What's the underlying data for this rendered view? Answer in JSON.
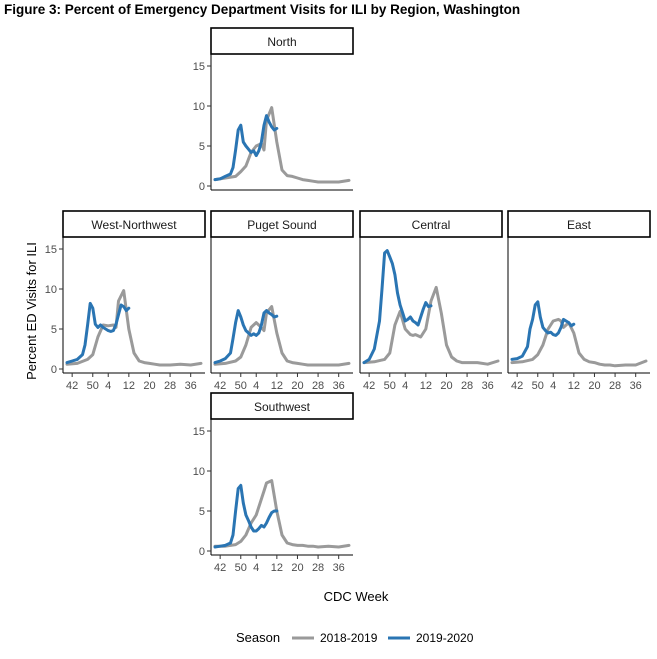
{
  "figure_title": "Figure 3: Percent of Emergency Department Visits for ILI by Region, Washington",
  "colors": {
    "season_2018_2019": "#9a9a9a",
    "season_2019_2020": "#2a75b3"
  },
  "chart_data": {
    "type": "line",
    "title": "Figure 3: Percent of Emergency Department Visits for ILI by Region, Washington",
    "xlabel": "CDC Week",
    "ylabel": "Percent ED Visits for ILI",
    "x_tick_labels": [
      "42",
      "50",
      "4",
      "12",
      "20",
      "28",
      "36"
    ],
    "y_ticks": [
      0,
      5,
      10,
      15
    ],
    "ylim": [
      0,
      16
    ],
    "grid": false,
    "legend": {
      "title": "Season",
      "position": "bottom",
      "entries": [
        "2018-2019",
        "2019-2020"
      ]
    },
    "x_index_note_units": "week index from CDC week 40",
    "panels": [
      {
        "name": "North",
        "series": [
          {
            "name": "2018-2019",
            "x": [
              0,
              4,
              8,
              10,
              12,
              14,
              16,
              18,
              19,
              20,
              22,
              24,
              26,
              28,
              30,
              32,
              34,
              36,
              38,
              40,
              44,
              48,
              52
            ],
            "y": [
              0.8,
              1.0,
              1.2,
              1.8,
              2.5,
              4.2,
              5.0,
              5.3,
              4.5,
              8.2,
              9.8,
              5.5,
              2.0,
              1.3,
              1.2,
              1.0,
              0.8,
              0.7,
              0.6,
              0.5,
              0.5,
              0.5,
              0.7
            ]
          },
          {
            "name": "2019-2020",
            "x": [
              0,
              2,
              4,
              6,
              7,
              8,
              9,
              10,
              11,
              12,
              13,
              14,
              15,
              16,
              17,
              18,
              19,
              20,
              21,
              22,
              23,
              24
            ],
            "y": [
              0.8,
              0.9,
              1.2,
              1.5,
              2.3,
              4.5,
              7.0,
              7.6,
              5.5,
              5.0,
              4.6,
              4.2,
              4.4,
              3.8,
              4.4,
              5.5,
              7.6,
              8.8,
              8.0,
              7.4,
              7.0,
              7.2
            ]
          }
        ]
      },
      {
        "name": "West-Northwest",
        "series": [
          {
            "name": "2018-2019",
            "x": [
              0,
              4,
              8,
              10,
              12,
              14,
              16,
              18,
              19,
              20,
              22,
              24,
              26,
              28,
              30,
              32,
              34,
              36,
              38,
              40,
              44,
              48,
              52
            ],
            "y": [
              0.6,
              0.7,
              1.2,
              1.8,
              4.0,
              5.5,
              5.4,
              5.5,
              5.2,
              8.5,
              9.8,
              5.0,
              2.0,
              1.0,
              0.8,
              0.7,
              0.6,
              0.5,
              0.5,
              0.5,
              0.6,
              0.5,
              0.7
            ]
          },
          {
            "name": "2019-2020",
            "x": [
              0,
              2,
              4,
              6,
              7,
              8,
              9,
              10,
              11,
              12,
              13,
              14,
              15,
              16,
              17,
              18,
              19,
              20,
              21,
              22,
              23,
              24
            ],
            "y": [
              0.8,
              1.0,
              1.2,
              1.8,
              3.0,
              5.5,
              8.2,
              7.6,
              5.6,
              5.2,
              5.5,
              5.2,
              5.0,
              4.8,
              4.7,
              4.8,
              5.6,
              6.8,
              8.0,
              7.8,
              7.3,
              7.6
            ]
          }
        ]
      },
      {
        "name": "Puget Sound",
        "series": [
          {
            "name": "2018-2019",
            "x": [
              0,
              4,
              8,
              10,
              12,
              14,
              16,
              18,
              19,
              20,
              22,
              24,
              26,
              28,
              30,
              32,
              34,
              36,
              38,
              40,
              44,
              48,
              52
            ],
            "y": [
              0.6,
              0.7,
              1.0,
              1.5,
              3.0,
              5.2,
              5.8,
              5.2,
              4.8,
              7.0,
              7.8,
              4.5,
              2.0,
              1.0,
              0.8,
              0.7,
              0.6,
              0.5,
              0.5,
              0.5,
              0.5,
              0.5,
              0.7
            ]
          },
          {
            "name": "2019-2020",
            "x": [
              0,
              2,
              4,
              6,
              7,
              8,
              9,
              10,
              11,
              12,
              13,
              14,
              15,
              16,
              17,
              18,
              19,
              20,
              21,
              22,
              23,
              24
            ],
            "y": [
              0.8,
              1.0,
              1.3,
              2.0,
              3.8,
              5.8,
              7.3,
              6.5,
              5.5,
              4.8,
              4.5,
              4.2,
              4.4,
              4.2,
              4.5,
              5.5,
              7.0,
              7.3,
              7.0,
              6.8,
              6.5,
              6.6
            ]
          }
        ]
      },
      {
        "name": "Central",
        "series": [
          {
            "name": "2018-2019",
            "x": [
              0,
              4,
              8,
              10,
              12,
              14,
              16,
              18,
              19,
              20,
              22,
              24,
              26,
              28,
              30,
              32,
              34,
              36,
              38,
              40,
              44,
              48,
              52
            ],
            "y": [
              0.8,
              0.9,
              1.2,
              2.0,
              5.5,
              7.2,
              5.0,
              4.3,
              4.2,
              4.3,
              4.0,
              5.0,
              8.5,
              10.2,
              7.0,
              3.0,
              1.5,
              1.0,
              0.8,
              0.8,
              0.8,
              0.6,
              1.0
            ]
          },
          {
            "name": "2019-2020",
            "x": [
              0,
              2,
              4,
              6,
              7,
              8,
              9,
              10,
              11,
              12,
              13,
              14,
              15,
              16,
              17,
              18,
              19,
              20,
              21,
              22,
              23,
              24,
              25,
              26
            ],
            "y": [
              0.8,
              1.2,
              2.5,
              6.0,
              10.0,
              14.5,
              14.8,
              14.0,
              13.2,
              11.8,
              9.5,
              8.0,
              7.0,
              6.0,
              6.2,
              6.5,
              6.0,
              5.8,
              5.5,
              6.5,
              7.5,
              8.3,
              7.8,
              7.9
            ]
          }
        ]
      },
      {
        "name": "East",
        "series": [
          {
            "name": "2018-2019",
            "x": [
              0,
              4,
              8,
              10,
              12,
              14,
              16,
              18,
              19,
              20,
              22,
              24,
              26,
              28,
              30,
              32,
              34,
              36,
              38,
              40,
              44,
              48,
              52
            ],
            "y": [
              0.8,
              0.9,
              1.2,
              1.8,
              3.0,
              5.0,
              6.0,
              6.2,
              6.0,
              5.2,
              5.8,
              4.5,
              2.0,
              1.2,
              0.9,
              0.8,
              0.6,
              0.5,
              0.5,
              0.4,
              0.5,
              0.5,
              1.0
            ]
          },
          {
            "name": "2019-2020",
            "x": [
              0,
              2,
              4,
              6,
              7,
              8,
              9,
              10,
              11,
              12,
              13,
              14,
              15,
              16,
              17,
              18,
              19,
              20,
              21,
              22,
              23,
              24
            ],
            "y": [
              1.2,
              1.3,
              1.6,
              2.8,
              5.0,
              6.2,
              8.0,
              8.4,
              6.5,
              5.2,
              4.8,
              4.5,
              4.6,
              4.3,
              4.2,
              4.5,
              5.2,
              6.2,
              6.0,
              5.8,
              5.4,
              5.6
            ]
          }
        ]
      },
      {
        "name": "Southwest",
        "series": [
          {
            "name": "2018-2019",
            "x": [
              0,
              4,
              8,
              10,
              12,
              14,
              16,
              18,
              19,
              20,
              22,
              24,
              26,
              28,
              30,
              32,
              34,
              36,
              38,
              40,
              44,
              48,
              52
            ],
            "y": [
              0.6,
              0.6,
              0.8,
              1.2,
              2.0,
              3.5,
              4.5,
              6.5,
              7.5,
              8.5,
              8.8,
              5.0,
              2.0,
              1.0,
              0.8,
              0.7,
              0.7,
              0.6,
              0.6,
              0.5,
              0.6,
              0.5,
              0.7
            ]
          },
          {
            "name": "2019-2020",
            "x": [
              0,
              2,
              4,
              6,
              7,
              8,
              9,
              10,
              11,
              12,
              13,
              14,
              15,
              16,
              17,
              18,
              19,
              20,
              21,
              22,
              23,
              24
            ],
            "y": [
              0.5,
              0.6,
              0.7,
              1.0,
              2.0,
              5.0,
              7.8,
              8.2,
              6.0,
              4.5,
              3.8,
              3.0,
              2.5,
              2.5,
              2.8,
              3.2,
              3.0,
              3.5,
              4.2,
              4.8,
              5.0,
              5.0
            ]
          }
        ]
      }
    ]
  }
}
